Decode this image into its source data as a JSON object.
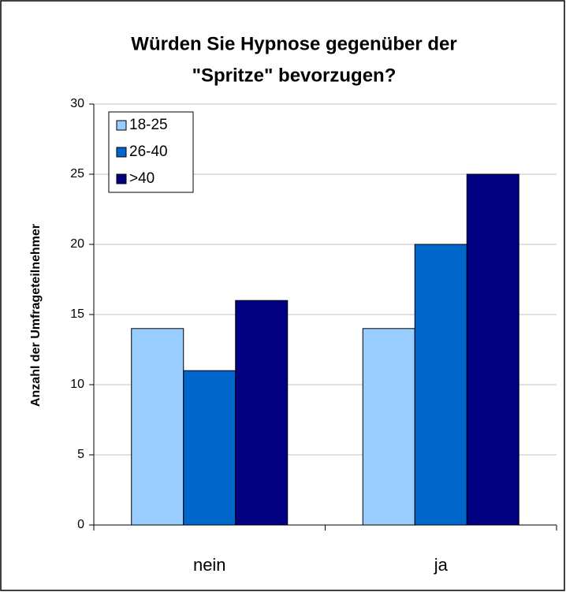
{
  "chart_data": {
    "type": "bar",
    "title": [
      "Würden Sie Hypnose gegenüber der",
      "\"Spritze\" bevorzugen?"
    ],
    "y_label": "Anzahl der Umfrageteilnehmer",
    "categories": [
      "nein",
      "ja"
    ],
    "series": [
      {
        "name": "18-25",
        "color": "#99ccff",
        "values": [
          14,
          14
        ]
      },
      {
        "name": "26-40",
        "color": "#0066cc",
        "values": [
          11,
          20
        ]
      },
      {
        "name": ">40",
        "color": "#000080",
        "values": [
          16,
          25
        ]
      }
    ],
    "ylim": [
      0,
      30
    ],
    "yticks": [
      0,
      5,
      10,
      15,
      20,
      25,
      30
    ],
    "grid": true,
    "legend": "upper left"
  }
}
